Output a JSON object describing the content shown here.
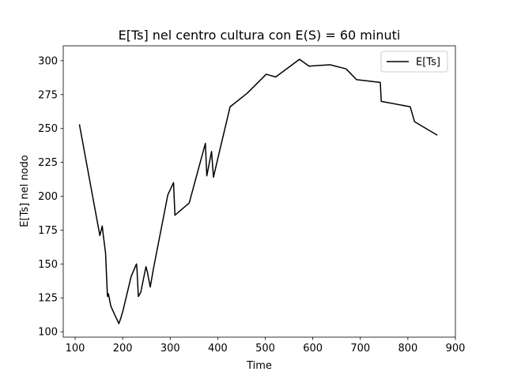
{
  "chart_data": {
    "type": "line",
    "title": "E[Ts] nel centro cultura con E(S) = 60 minuti",
    "xlabel": "Time",
    "ylabel": "E[Ts] nel nodo",
    "xlim": [
      75,
      900
    ],
    "ylim": [
      96,
      311
    ],
    "xticks": [
      100,
      200,
      300,
      400,
      500,
      600,
      700,
      800,
      900
    ],
    "yticks": [
      100,
      125,
      150,
      175,
      200,
      225,
      250,
      275,
      300
    ],
    "legend_position": "upper right",
    "grid": false,
    "series": [
      {
        "name": "E[Ts]",
        "color": "#000000",
        "x": [
          109,
          152,
          157,
          159,
          164,
          168,
          170,
          175,
          184,
          192,
          196,
          201,
          218,
          229,
          230,
          233,
          238,
          249,
          252,
          258,
          265,
          295,
          307,
          310,
          340,
          374,
          377,
          387,
          391,
          403,
          426,
          462,
          502,
          522,
          572,
          592,
          636,
          670,
          692,
          742,
          744,
          805,
          814,
          862
        ],
        "y": [
          253,
          171,
          178,
          172,
          158,
          126,
          128,
          119,
          112,
          106,
          110,
          116,
          141,
          150,
          147,
          126,
          129,
          148,
          144,
          133,
          147,
          201,
          210,
          186,
          195,
          239,
          215,
          233,
          214,
          232,
          266,
          276,
          290,
          288,
          301,
          296,
          297,
          294,
          286,
          284,
          270,
          266,
          255,
          245
        ]
      }
    ]
  }
}
